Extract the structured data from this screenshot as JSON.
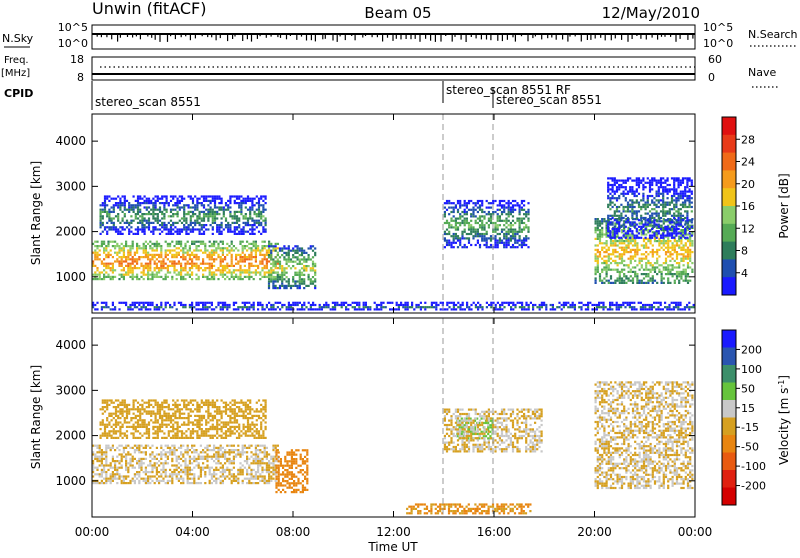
{
  "header": {
    "station": "Unwin (fitACF)",
    "beam": "Beam 05",
    "date": "12/May/2010"
  },
  "top_panels": {
    "nsky": {
      "left_label": "N.Sky",
      "right_label": "N.Search",
      "ticks_left": [
        "10^5",
        "10^0"
      ],
      "ticks_right": [
        "10^5",
        "10^0"
      ]
    },
    "freq": {
      "left_label": "Freq.",
      "left_unit": "[MHz]",
      "right_label": "Nave",
      "ticks_left": [
        "18",
        "8"
      ],
      "ticks_right": [
        "60",
        "0"
      ]
    },
    "cpid": {
      "label": "CPID",
      "entries": [
        {
          "text": "stereo_scan 8551",
          "start_hour": 0.1
        },
        {
          "text": "stereo_scan 8551 RF",
          "start_hour": 14.0
        },
        {
          "text": "stereo_scan 8551",
          "start_hour": 16.0
        }
      ],
      "mode_change_hours": [
        14.0,
        16.0
      ]
    }
  },
  "x_axis": {
    "label": "Time UT",
    "ticks": [
      "00:00",
      "04:00",
      "08:00",
      "12:00",
      "16:00",
      "20:00",
      "00:00"
    ],
    "range_hours": [
      0,
      24
    ]
  },
  "colors": {
    "power_scale": [
      "#1a1aff",
      "#1f4fb0",
      "#2e7d5b",
      "#55aa55",
      "#8acd6a",
      "#f0c419",
      "#f59b1c",
      "#f06a18",
      "#e83a18",
      "#e01010"
    ],
    "velocity_scale": [
      "#1a1aff",
      "#2a55b0",
      "#3c8f6a",
      "#66c43c",
      "#c8c8c8",
      "#d6a020",
      "#e88510",
      "#e85a10",
      "#e02010",
      "#d40000"
    ]
  },
  "chart_data": [
    {
      "type": "heatmap",
      "ylabel": "Slant Range [km]",
      "xlabel": "Time UT",
      "ylim": [
        200,
        4600
      ],
      "yticks": [
        1000,
        2000,
        3000,
        4000
      ],
      "colorbar_label": "Power [dB]",
      "colorbar_ticks": [
        "28",
        "24",
        "20",
        "16",
        "12",
        "8",
        "4"
      ],
      "colorbar_range": [
        0,
        32
      ],
      "regions": [
        {
          "name": "main band",
          "t_start": 0.0,
          "t_end": 7.5,
          "r_low": 900,
          "r_high": 1800,
          "value": 24
        },
        {
          "name": "upper band",
          "t_start": 0.3,
          "t_end": 7.0,
          "r_low": 1900,
          "r_high": 2800,
          "value": 10
        },
        {
          "name": "afternoon echo",
          "t_start": 14.0,
          "t_end": 17.5,
          "r_low": 1600,
          "r_high": 2700,
          "value": 12
        },
        {
          "name": "early slanted echo",
          "t_start": 7.0,
          "t_end": 9.0,
          "r_low": 700,
          "r_high": 1700,
          "value": 16
        },
        {
          "name": "evening band",
          "t_start": 20.0,
          "t_end": 24.0,
          "r_low": 800,
          "r_high": 2300,
          "value": 20
        },
        {
          "name": "late arc",
          "t_start": 20.5,
          "t_end": 24.0,
          "r_low": 1800,
          "r_high": 3200,
          "value": 8
        },
        {
          "name": "near range",
          "t_start": 0.0,
          "t_end": 24.0,
          "r_low": 250,
          "r_high": 450,
          "value": 6
        }
      ]
    },
    {
      "type": "heatmap",
      "ylabel": "Slant Range [km]",
      "xlabel": "Time UT",
      "ylim": [
        200,
        4600
      ],
      "yticks": [
        1000,
        2000,
        3000,
        4000
      ],
      "colorbar_label": "Velocity [m s^-1]",
      "colorbar_ticks": [
        "200",
        "100",
        "50",
        "15",
        "-15",
        "-50",
        "-100",
        "-200"
      ],
      "colorbar_range": [
        -250,
        250
      ],
      "regions": [
        {
          "name": "ground scatter band",
          "t_start": 0.0,
          "t_end": 7.5,
          "r_low": 900,
          "r_high": 1800,
          "value": 0
        },
        {
          "name": "upper band",
          "t_start": 0.3,
          "t_end": 7.0,
          "r_low": 1900,
          "r_high": 2800,
          "value": -30
        },
        {
          "name": "orange stripe",
          "t_start": 7.3,
          "t_end": 8.7,
          "r_low": 700,
          "r_high": 1700,
          "value": -80
        },
        {
          "name": "green patch",
          "t_start": 14.5,
          "t_end": 16.0,
          "r_low": 1900,
          "r_high": 2400,
          "value": 70
        },
        {
          "name": "grey band",
          "t_start": 14.0,
          "t_end": 18.0,
          "r_low": 1600,
          "r_high": 2600,
          "value": 0
        },
        {
          "name": "evening echoes",
          "t_start": 20.0,
          "t_end": 24.0,
          "r_low": 800,
          "r_high": 3200,
          "value": 0
        },
        {
          "name": "near range orange",
          "t_start": 12.5,
          "t_end": 17.5,
          "r_low": 250,
          "r_high": 500,
          "value": -60
        }
      ]
    }
  ]
}
